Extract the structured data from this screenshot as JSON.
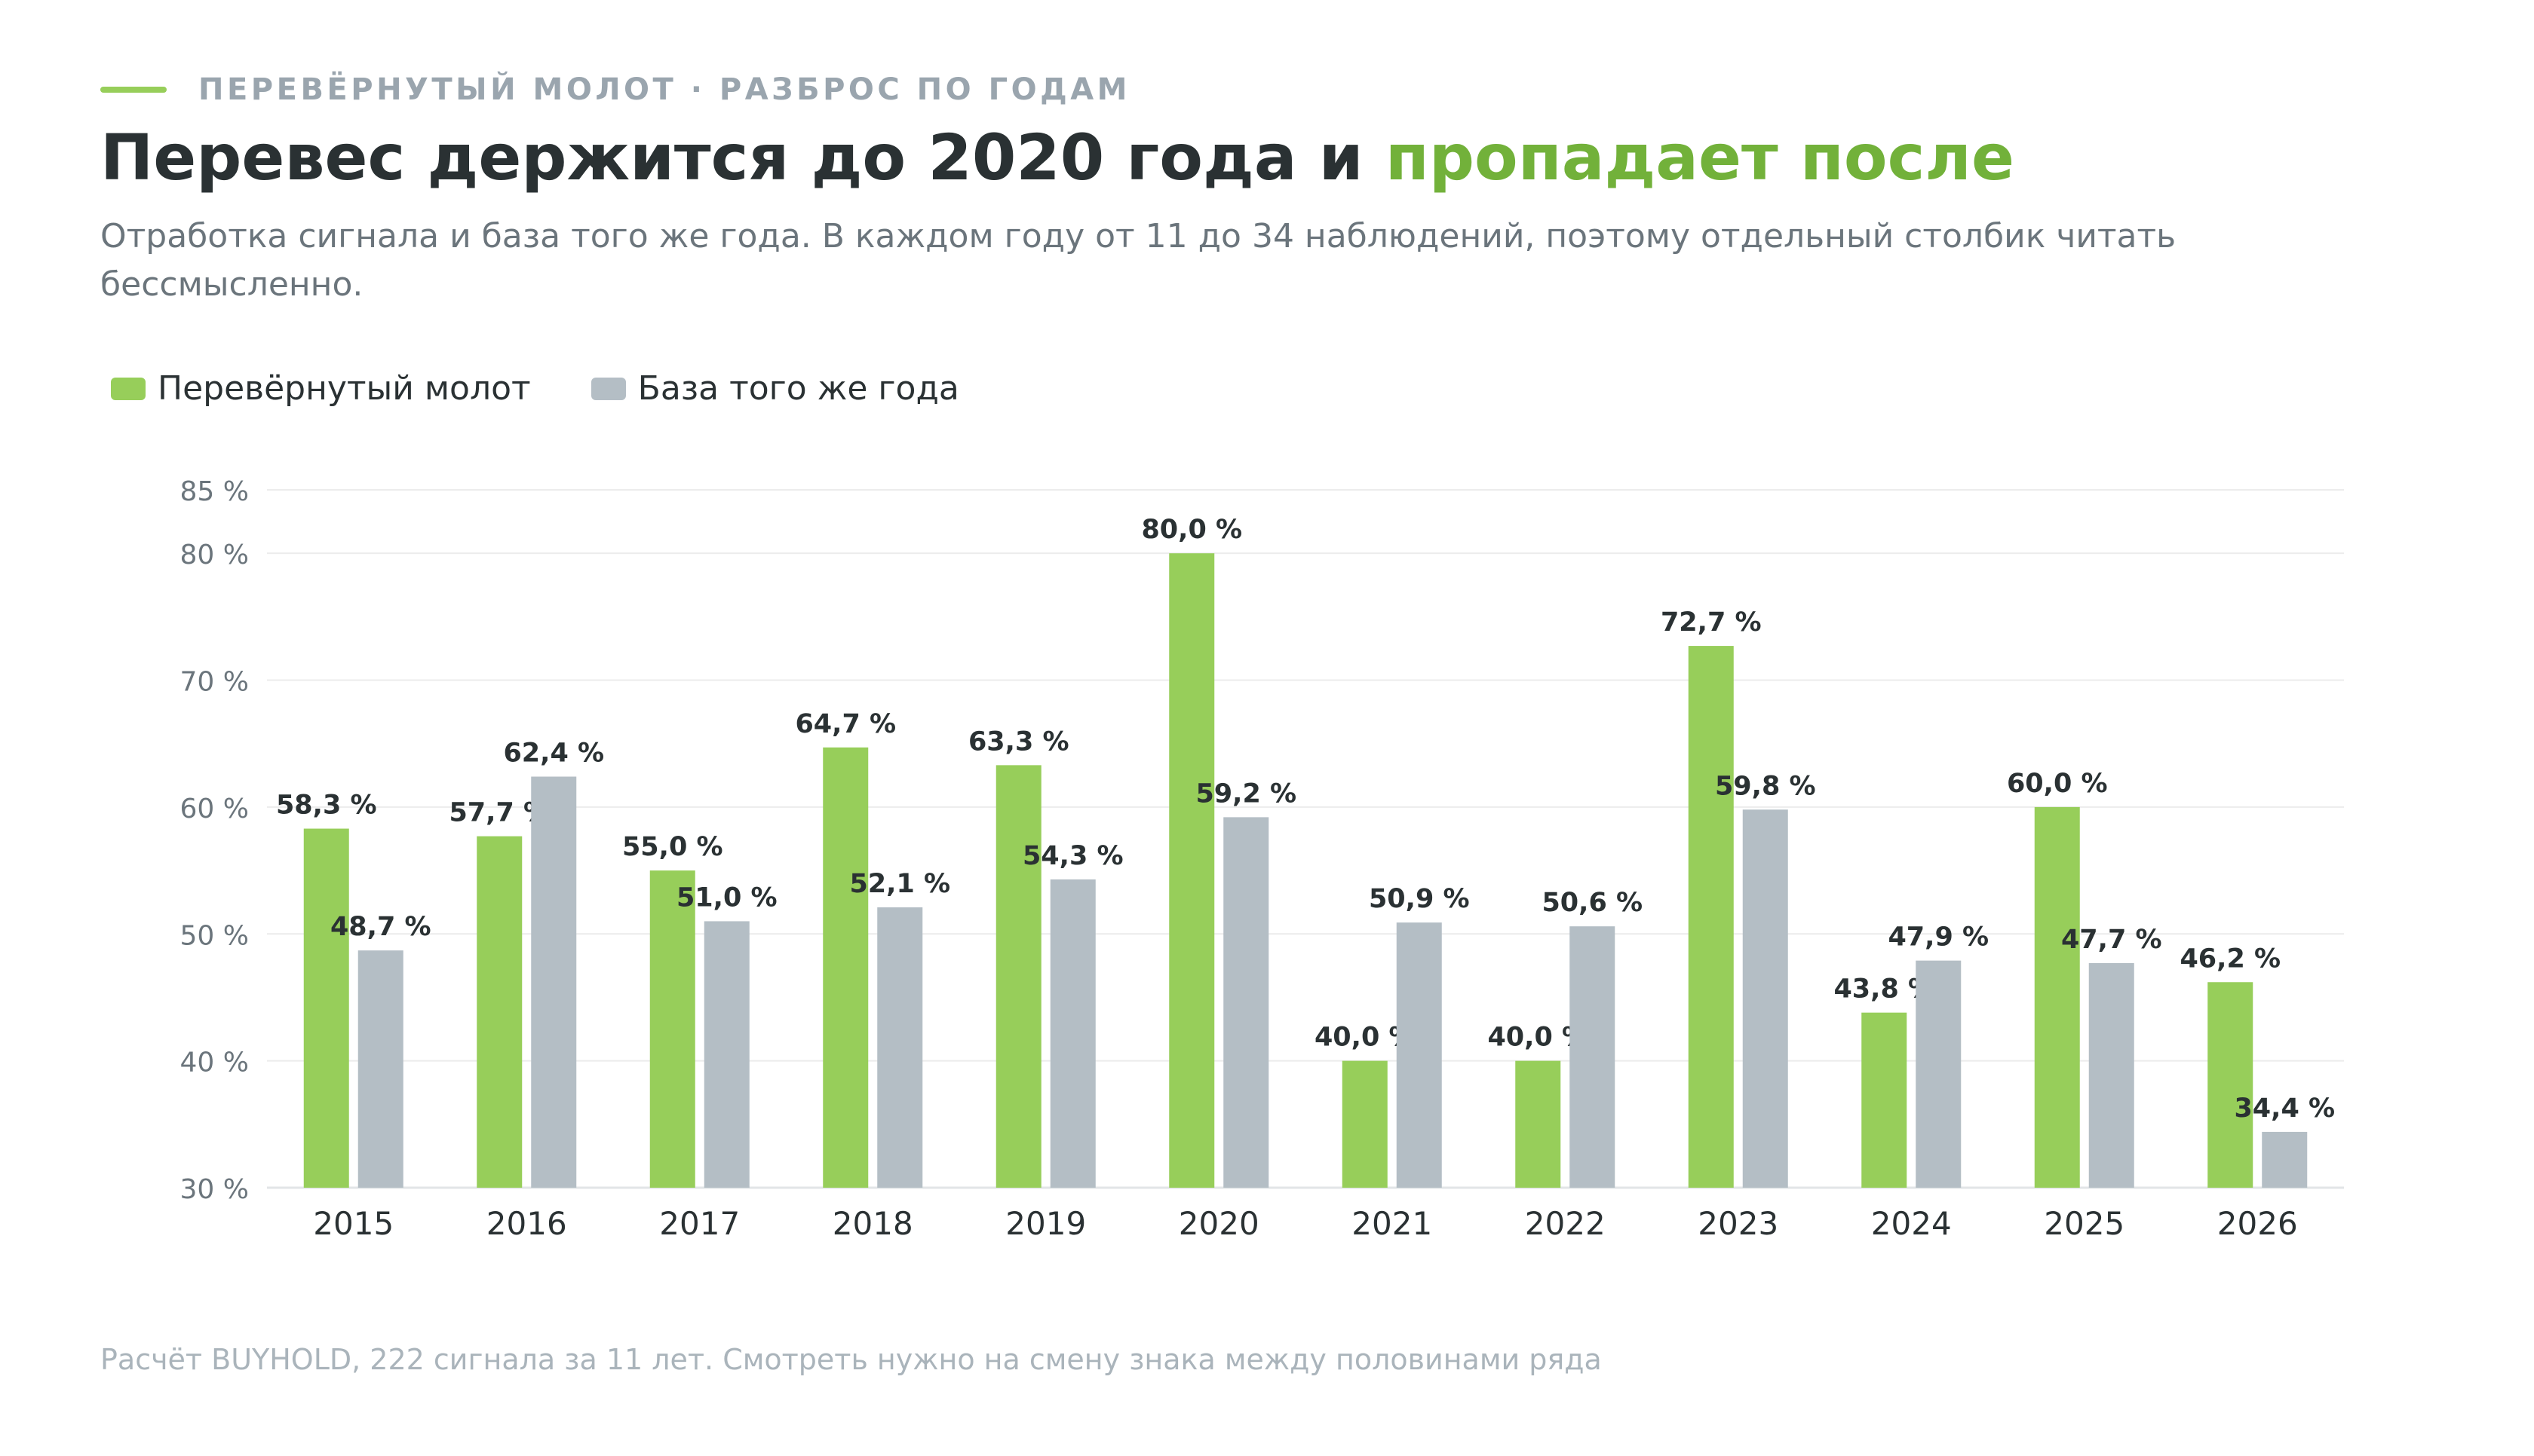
{
  "eyebrow": "ПЕРЕВЁРНУТЫЙ МОЛОТ · РАЗБРОС ПО ГОДАМ",
  "headline": {
    "main": "Перевес держится до 2020 года и ",
    "accent": "пропадает после"
  },
  "subtitle": "Отработка сигнала и база того же года. В каждом году от 11 до 34 наблюдений, поэтому отдельный столбик читать бессмысленно.",
  "footnote": "Расчёт BUYHOLD, 222 сигнала за 11 лет. Смотреть нужно на смену знака между половинами ряда",
  "colors": {
    "accent": "#97ce5a",
    "accent_text": "#72b13a",
    "base": "#b4bec5",
    "grid": "#ececec",
    "axis_text": "#6b757c",
    "label_text": "#2a3133"
  },
  "chart_data": {
    "type": "bar",
    "categories": [
      "2015",
      "2016",
      "2017",
      "2018",
      "2019",
      "2020",
      "2021",
      "2022",
      "2023",
      "2024",
      "2025",
      "2026"
    ],
    "series": [
      {
        "name": "Перевёрнутый молот",
        "values": [
          58.3,
          57.7,
          55.0,
          64.7,
          63.3,
          80.0,
          40.0,
          40.0,
          72.7,
          43.8,
          60.0,
          46.2
        ]
      },
      {
        "name": "База того же года",
        "values": [
          48.7,
          62.4,
          51.0,
          52.1,
          54.3,
          59.2,
          50.9,
          50.6,
          59.8,
          47.9,
          47.7,
          34.4
        ]
      }
    ],
    "data_labels": [
      [
        "58,3 %",
        "57,7 %",
        "55,0 %",
        "64,7 %",
        "63,3 %",
        "80,0 %",
        "40,0 %",
        "40,0 %",
        "72,7 %",
        "43,8 %",
        "60,0 %",
        "46,2 %"
      ],
      [
        "48,7 %",
        "62,4 %",
        "51,0 %",
        "52,1 %",
        "54,3 %",
        "59,2 %",
        "50,9 %",
        "50,6 %",
        "59,8 %",
        "47,9 %",
        "47,7 %",
        "34,4 %"
      ]
    ],
    "yticks": [
      30,
      40,
      50,
      60,
      70,
      80,
      85
    ],
    "ytick_labels": [
      "30 %",
      "40 %",
      "50 %",
      "60 %",
      "70 %",
      "80 %",
      "85 %"
    ],
    "ylim": [
      30,
      85
    ],
    "grid": true,
    "legend": "top-left"
  }
}
